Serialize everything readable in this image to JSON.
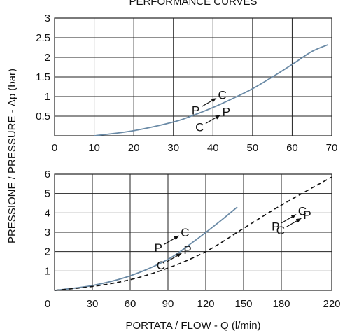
{
  "title": "PERFORMANCE CURVES",
  "ylabel": "PRESSIONE / PRESSURE - Δp (bar)",
  "xlabel": "PORTATA / FLOW - Q (l/min)",
  "colors": {
    "series_blue": "#6a8aa6",
    "series_dashed": "#111111",
    "grid": "#222222"
  },
  "chart_data": [
    {
      "type": "line",
      "xlim": [
        0,
        70
      ],
      "ylim": [
        0,
        3
      ],
      "x_ticks": [
        "0",
        "10",
        "20",
        "30",
        "40",
        "50",
        "60",
        "70"
      ],
      "y_ticks": [
        "0.5",
        "1",
        "1.5",
        "2",
        "2.5",
        "3"
      ],
      "grid": true,
      "series": [
        {
          "style": "solid",
          "x": [
            10,
            20,
            30,
            35,
            40,
            45,
            50,
            55,
            60,
            65,
            69
          ],
          "y": [
            0,
            0.13,
            0.35,
            0.52,
            0.72,
            0.95,
            1.2,
            1.5,
            1.82,
            2.15,
            2.32
          ]
        }
      ],
      "annotations": [
        {
          "from": "P",
          "to": "C",
          "at_x": 39,
          "at_y": 0.85
        },
        {
          "from": "C",
          "to": "P",
          "at_x": 40,
          "at_y": 0.42
        }
      ]
    },
    {
      "type": "line",
      "xlim": [
        0,
        220
      ],
      "ylim": [
        0,
        6
      ],
      "x_ticks": [
        "0",
        "30",
        "60",
        "90",
        "120",
        "150",
        "180",
        "220"
      ],
      "y_ticks": [
        "1",
        "2",
        "3",
        "4",
        "5",
        "6"
      ],
      "grid": true,
      "series": [
        {
          "style": "solid",
          "x": [
            0,
            30,
            60,
            90,
            110,
            130,
            145
          ],
          "y": [
            0,
            0.25,
            0.75,
            1.6,
            2.5,
            3.5,
            4.3
          ]
        },
        {
          "style": "dashed",
          "x": [
            0,
            30,
            60,
            90,
            120,
            150,
            180,
            220
          ],
          "y": [
            0,
            0.2,
            0.55,
            1.15,
            2.0,
            3.2,
            4.4,
            5.85
          ]
        }
      ],
      "annotations": [
        {
          "from": "P",
          "to": "C",
          "at_x": 93,
          "at_y": 2.6
        },
        {
          "from": "C",
          "to": "P",
          "at_x": 95,
          "at_y": 1.7
        },
        {
          "from": "P",
          "to": "C",
          "at_x": 186,
          "at_y": 3.7
        },
        {
          "from": "C",
          "to": "P",
          "at_x": 190,
          "at_y": 3.5
        }
      ]
    }
  ]
}
